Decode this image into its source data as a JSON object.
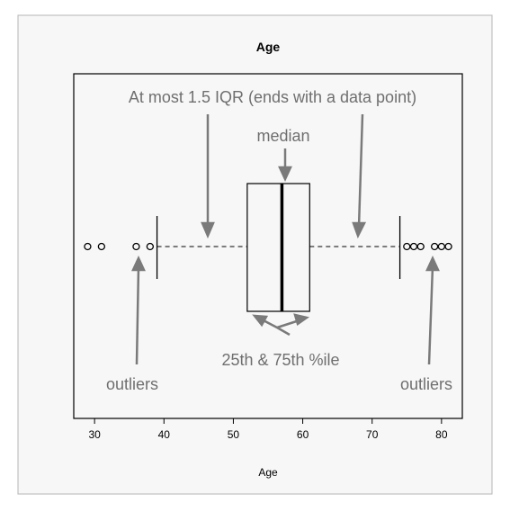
{
  "chart_data": {
    "type": "boxplot",
    "title": "Age",
    "xlabel": "Age",
    "ylabel": "",
    "xlim": [
      27,
      83
    ],
    "x_ticks": [
      30,
      40,
      50,
      60,
      70,
      80
    ],
    "box": {
      "whisker_low": 39,
      "q1": 52,
      "median": 57,
      "q3": 61,
      "whisker_high": 74
    },
    "outliers": [
      29,
      31,
      36,
      38,
      75,
      76,
      77,
      79,
      80,
      81
    ],
    "annotations": {
      "whisker_note": "At most 1.5 IQR (ends with a data point)",
      "median_note": "median",
      "quartile_note": "25th & 75th %ile",
      "outliers_left": "outliers",
      "outliers_right": "outliers"
    },
    "grid": false,
    "legend": "none"
  }
}
